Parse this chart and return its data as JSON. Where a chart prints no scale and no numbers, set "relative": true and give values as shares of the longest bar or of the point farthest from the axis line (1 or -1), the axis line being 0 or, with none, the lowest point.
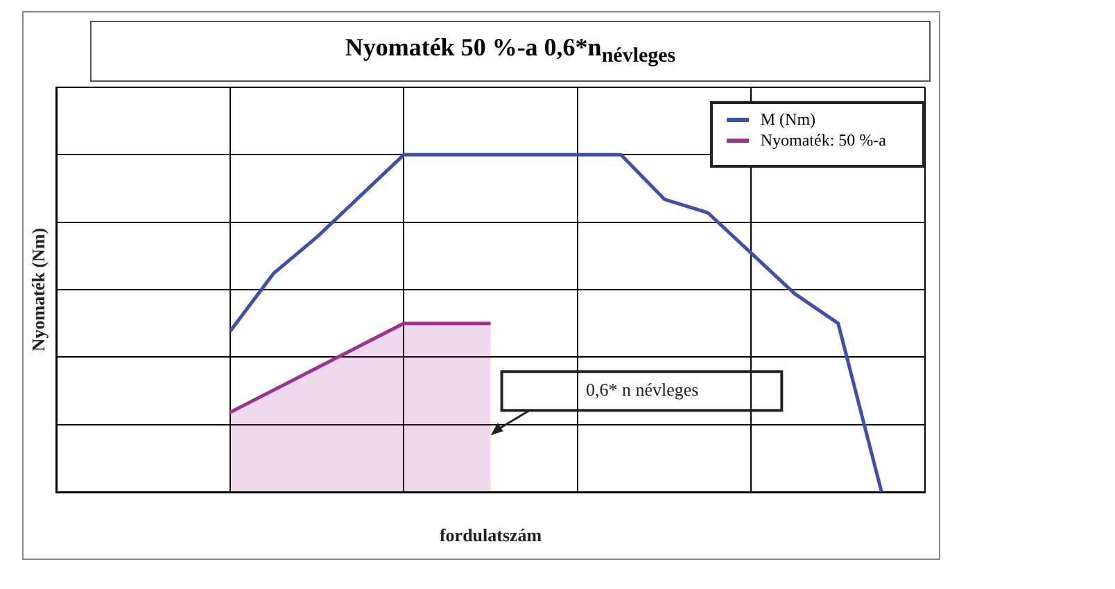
{
  "chart_data": {
    "type": "line",
    "title": "Nyomaték 50 %-a 0,6*n$_{névleges}$",
    "xlabel": "fordulatszám",
    "ylabel": "Nyomaték (Nm)",
    "relative": true,
    "categories": [
      null,
      null,
      null,
      null,
      null,
      null,
      null,
      null,
      null,
      null,
      null,
      null,
      null,
      null,
      null,
      null,
      null,
      null,
      null,
      null,
      null
    ],
    "grid": true,
    "legend": "top right",
    "series": [
      {
        "name": "M (Nm)",
        "type": "line",
        "color": "#3f4fb0",
        "values": [
          null,
          null,
          null,
          null,
          0.476,
          0.648,
          0.756,
          null,
          1,
          null,
          null,
          null,
          null,
          1,
          0.868,
          0.828,
          0.708,
          0.588,
          0.5,
          0,
          null
        ]
      },
      {
        "name": "Nyomaték: 50 %-a",
        "type": "area",
        "color": "#a0308f",
        "values": [
          null,
          null,
          null,
          null,
          0.236,
          null,
          null,
          null,
          0.5,
          null,
          0.5,
          null,
          null,
          null,
          null,
          null,
          null,
          null,
          null,
          null,
          null
        ]
      }
    ],
    "annotations": [
      "0,6* n névleges"
    ]
  }
}
